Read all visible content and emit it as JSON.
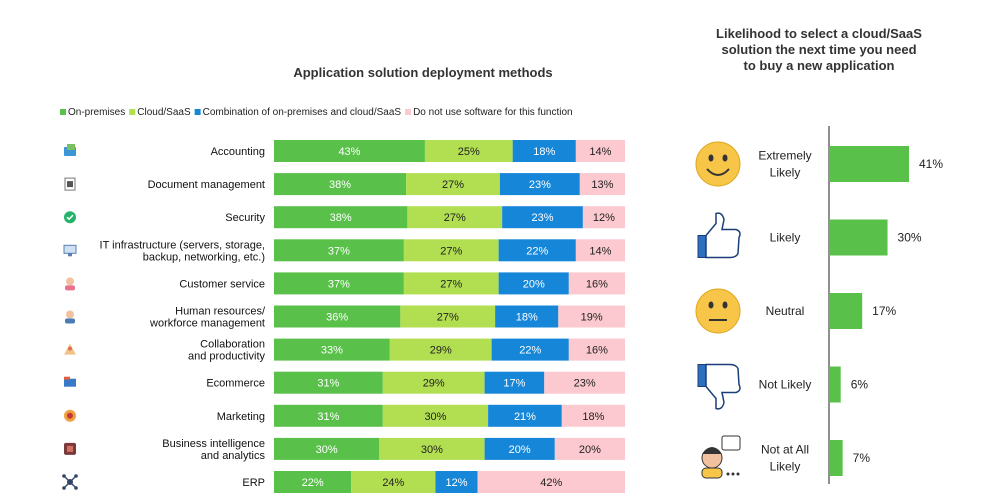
{
  "colors": {
    "on_premises": "#59c14a",
    "cloud_saas": "#b2de52",
    "combination": "#1686d8",
    "none": "#fbc9cf",
    "right_bar": "#59c14a"
  },
  "chart_data": [
    {
      "type": "bar",
      "orientation": "horizontal-stacked",
      "title": "Application solution deployment methods",
      "legend_position": "top",
      "categories": [
        [
          "Accounting"
        ],
        [
          "Document management"
        ],
        [
          "Security"
        ],
        [
          "IT infrastructure (servers, storage,",
          "backup, networking, etc.)"
        ],
        [
          "Customer service"
        ],
        [
          "Human resources/",
          "workforce management"
        ],
        [
          "Collaboration",
          "and productivity"
        ],
        [
          "Ecommerce"
        ],
        [
          "Marketing"
        ],
        [
          "Business intelligence",
          "and analytics"
        ],
        [
          "ERP"
        ]
      ],
      "category_icons": [
        "accounting-icon",
        "document-icon",
        "security-shield-icon",
        "it-infrastructure-icon",
        "customer-service-icon",
        "human-resources-icon",
        "collaboration-icon",
        "ecommerce-icon",
        "marketing-icon",
        "business-intelligence-icon",
        "erp-icon"
      ],
      "series": [
        {
          "name": "On-premises",
          "values": [
            43,
            38,
            38,
            37,
            37,
            36,
            33,
            31,
            31,
            30,
            22
          ],
          "labels": [
            "43%",
            "38%",
            "38%",
            "37%",
            "37%",
            "36%",
            "33%",
            "31%",
            "31%",
            "30%",
            "22%"
          ]
        },
        {
          "name": "Cloud/SaaS",
          "values": [
            25,
            27,
            27,
            27,
            27,
            27,
            29,
            29,
            30,
            30,
            24
          ],
          "labels": [
            "25%",
            "27%",
            "27%",
            "27%",
            "27%",
            "27%",
            "29%",
            "29%",
            "30%",
            "30%",
            "24%"
          ]
        },
        {
          "name": "Combination of on-premises and cloud/SaaS",
          "values": [
            18,
            23,
            23,
            22,
            20,
            18,
            22,
            17,
            21,
            20,
            12
          ],
          "labels": [
            "18%",
            "23%",
            "23%",
            "22%",
            "20%",
            "18%",
            "22%",
            "17%",
            "21%",
            "20%",
            "12%"
          ]
        },
        {
          "name": "Do not use software for this function",
          "values": [
            14,
            13,
            12,
            14,
            16,
            19,
            16,
            23,
            18,
            20,
            42
          ],
          "labels": [
            "14%",
            "13%",
            "12%",
            "14%",
            "16%",
            "19%",
            "16%",
            "23%",
            "18%",
            "20%",
            "42%"
          ]
        }
      ]
    },
    {
      "type": "bar",
      "orientation": "horizontal",
      "title": [
        "Likelihood to select a cloud/SaaS",
        "solution the next time you need",
        "to buy a new application"
      ],
      "categories": [
        [
          "Extremely",
          "Likely"
        ],
        [
          "Likely"
        ],
        [
          "Neutral"
        ],
        [
          "Not Likely"
        ],
        [
          "Not at All",
          "Likely"
        ]
      ],
      "category_icons": [
        "smiley-happy-icon",
        "thumbs-up-icon",
        "smiley-neutral-icon",
        "thumbs-down-icon",
        "unhappy-customer-icon"
      ],
      "values": [
        41,
        30,
        17,
        6,
        7
      ],
      "labels": [
        "41%",
        "30%",
        "17%",
        "6%",
        "7%"
      ]
    }
  ]
}
